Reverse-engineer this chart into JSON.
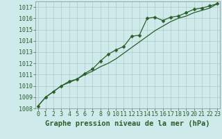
{
  "title": "Graphe pression niveau de la mer (hPa)",
  "x_labels": [
    0,
    1,
    2,
    3,
    4,
    5,
    6,
    7,
    8,
    9,
    10,
    11,
    12,
    13,
    14,
    15,
    16,
    17,
    18,
    19,
    20,
    21,
    22,
    23
  ],
  "line1_y": [
    1008.2,
    1009.0,
    1009.5,
    1010.0,
    1010.4,
    1010.6,
    1011.1,
    1011.5,
    1012.2,
    1012.8,
    1013.2,
    1013.5,
    1014.4,
    1014.5,
    1016.0,
    1016.1,
    1015.8,
    1016.1,
    1016.2,
    1016.5,
    1016.8,
    1016.9,
    1017.1,
    1017.3
  ],
  "line2_y": [
    1008.2,
    1009.0,
    1009.5,
    1010.0,
    1010.3,
    1010.6,
    1011.0,
    1011.3,
    1011.7,
    1012.0,
    1012.4,
    1012.9,
    1013.4,
    1013.9,
    1014.4,
    1014.9,
    1015.3,
    1015.7,
    1016.0,
    1016.2,
    1016.5,
    1016.7,
    1016.9,
    1017.3
  ],
  "line_color": "#2a5f2a",
  "marker": "D",
  "marker_size": 2.5,
  "bg_color": "#ceeaea",
  "grid_color": "#b0c8c8",
  "border_color": "#888888",
  "ylim": [
    1008,
    1017.5
  ],
  "yticks": [
    1008,
    1009,
    1010,
    1011,
    1012,
    1013,
    1014,
    1015,
    1016,
    1017
  ],
  "title_color": "#2a5f2a",
  "title_fontsize": 7.5,
  "tick_fontsize": 6.0
}
